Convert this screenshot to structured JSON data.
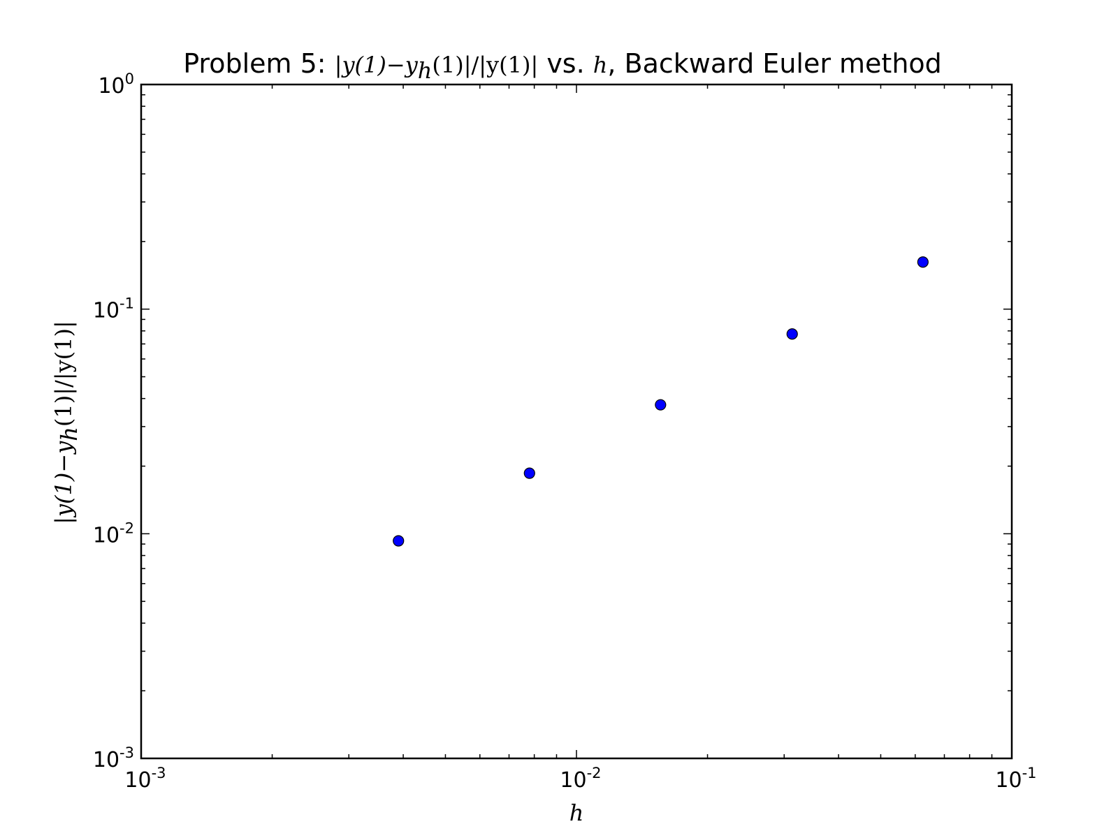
{
  "chart_data": {
    "type": "scatter",
    "title": {
      "prefix": "Problem 5: ",
      "math_expr": "|y(1)−y",
      "math_sub": "h",
      "math_expr_end": "(1)|/|y(1)|",
      "mid": " vs. ",
      "math_var": "h",
      "suffix": ", Backward Euler method"
    },
    "xlabel": "h",
    "ylabel": {
      "pre": "|y(1)−y",
      "sub": "h",
      "post": "(1)|/|y(1)|"
    },
    "x_scale": "log",
    "y_scale": "log",
    "xlim": [
      0.001,
      0.1
    ],
    "ylim": [
      0.001,
      1
    ],
    "x_ticks": [
      {
        "base": "10",
        "exp": "-3",
        "value": 0.001
      },
      {
        "base": "10",
        "exp": "-2",
        "value": 0.01
      },
      {
        "base": "10",
        "exp": "-1",
        "value": 0.1
      }
    ],
    "y_ticks": [
      {
        "base": "10",
        "exp": "-3",
        "value": 0.001
      },
      {
        "base": "10",
        "exp": "-2",
        "value": 0.01
      },
      {
        "base": "10",
        "exp": "-1",
        "value": 0.1
      },
      {
        "base": "10",
        "exp": "0",
        "value": 1
      }
    ],
    "grid": false,
    "marker_color": "#0000ff",
    "marker_edge_color": "#000000",
    "points": [
      {
        "x": 0.0039,
        "y": 0.0093
      },
      {
        "x": 0.0078,
        "y": 0.0186
      },
      {
        "x": 0.0156,
        "y": 0.0375
      },
      {
        "x": 0.0313,
        "y": 0.0775
      },
      {
        "x": 0.0625,
        "y": 0.162
      }
    ]
  }
}
